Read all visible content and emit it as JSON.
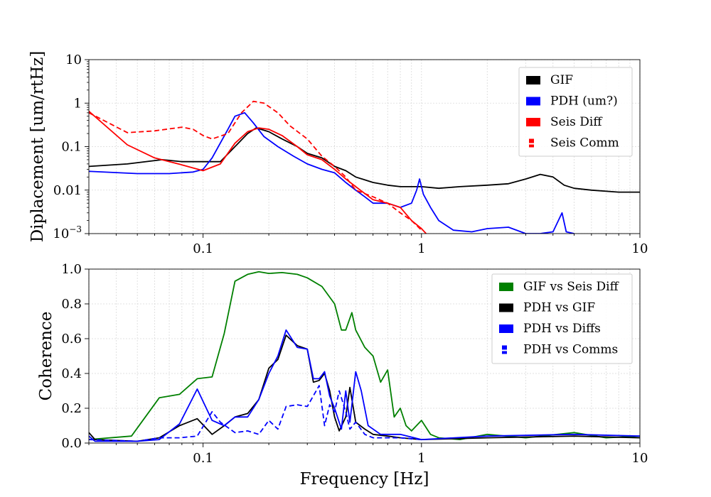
{
  "chart_data": [
    {
      "type": "line",
      "xscale": "log",
      "yscale": "log",
      "xlim": [
        0.03,
        10
      ],
      "ylim": [
        0.001,
        10
      ],
      "ylabel": "Diplacement [um/rtHz]",
      "xlabel": "",
      "xticks": [
        "0.1",
        "1",
        "10"
      ],
      "xtick_values": [
        0.1,
        1,
        10
      ],
      "yticks": [
        "10",
        "1",
        "0.1",
        "0.01",
        "10^-3"
      ],
      "ytick_values": [
        10,
        1,
        0.1,
        0.01,
        0.001
      ],
      "grid": true,
      "legend_position": "top-right",
      "series": [
        {
          "name": "GIF",
          "color": "#000000",
          "style": "solid",
          "points": [
            [
              0.03,
              0.035
            ],
            [
              0.045,
              0.04
            ],
            [
              0.065,
              0.05
            ],
            [
              0.08,
              0.045
            ],
            [
              0.1,
              0.045
            ],
            [
              0.12,
              0.045
            ],
            [
              0.14,
              0.1
            ],
            [
              0.16,
              0.2
            ],
            [
              0.175,
              0.27
            ],
            [
              0.2,
              0.22
            ],
            [
              0.23,
              0.15
            ],
            [
              0.27,
              0.1
            ],
            [
              0.3,
              0.07
            ],
            [
              0.35,
              0.055
            ],
            [
              0.4,
              0.035
            ],
            [
              0.45,
              0.028
            ],
            [
              0.5,
              0.02
            ],
            [
              0.6,
              0.015
            ],
            [
              0.7,
              0.013
            ],
            [
              0.8,
              0.012
            ],
            [
              1.0,
              0.012
            ],
            [
              1.2,
              0.011
            ],
            [
              1.5,
              0.012
            ],
            [
              2.0,
              0.013
            ],
            [
              2.5,
              0.014
            ],
            [
              3.0,
              0.018
            ],
            [
              3.5,
              0.023
            ],
            [
              4.0,
              0.02
            ],
            [
              4.5,
              0.013
            ],
            [
              5.0,
              0.011
            ],
            [
              6.0,
              0.01
            ],
            [
              8.0,
              0.009
            ],
            [
              10,
              0.009
            ]
          ]
        },
        {
          "name": "PDH (um?)",
          "color": "#0000ff",
          "style": "solid",
          "points": [
            [
              0.03,
              0.027
            ],
            [
              0.05,
              0.024
            ],
            [
              0.07,
              0.024
            ],
            [
              0.09,
              0.026
            ],
            [
              0.1,
              0.03
            ],
            [
              0.11,
              0.055
            ],
            [
              0.13,
              0.25
            ],
            [
              0.14,
              0.5
            ],
            [
              0.155,
              0.6
            ],
            [
              0.17,
              0.35
            ],
            [
              0.19,
              0.17
            ],
            [
              0.22,
              0.1
            ],
            [
              0.26,
              0.06
            ],
            [
              0.3,
              0.04
            ],
            [
              0.35,
              0.03
            ],
            [
              0.4,
              0.025
            ],
            [
              0.45,
              0.015
            ],
            [
              0.5,
              0.01
            ],
            [
              0.55,
              0.007
            ],
            [
              0.6,
              0.005
            ],
            [
              0.7,
              0.005
            ],
            [
              0.8,
              0.004
            ],
            [
              0.9,
              0.005
            ],
            [
              0.95,
              0.01
            ],
            [
              0.98,
              0.018
            ],
            [
              1.02,
              0.008
            ],
            [
              1.1,
              0.004
            ],
            [
              1.2,
              0.002
            ],
            [
              1.4,
              0.0012
            ],
            [
              1.7,
              0.0011
            ],
            [
              2.0,
              0.0013
            ],
            [
              2.5,
              0.0014
            ],
            [
              3.0,
              0.001
            ],
            [
              3.5,
              0.001
            ],
            [
              4.0,
              0.0011
            ],
            [
              4.4,
              0.003
            ],
            [
              4.6,
              0.0011
            ],
            [
              5.0,
              0.001
            ]
          ]
        },
        {
          "name": "Seis Diff",
          "color": "#ff0000",
          "style": "solid",
          "points": [
            [
              0.03,
              0.65
            ],
            [
              0.045,
              0.11
            ],
            [
              0.06,
              0.055
            ],
            [
              0.08,
              0.038
            ],
            [
              0.1,
              0.028
            ],
            [
              0.12,
              0.04
            ],
            [
              0.14,
              0.12
            ],
            [
              0.16,
              0.22
            ],
            [
              0.18,
              0.27
            ],
            [
              0.2,
              0.25
            ],
            [
              0.23,
              0.18
            ],
            [
              0.27,
              0.1
            ],
            [
              0.3,
              0.065
            ],
            [
              0.35,
              0.05
            ],
            [
              0.4,
              0.03
            ],
            [
              0.45,
              0.018
            ],
            [
              0.5,
              0.012
            ],
            [
              0.6,
              0.006
            ],
            [
              0.7,
              0.005
            ],
            [
              0.8,
              0.004
            ],
            [
              0.9,
              0.002
            ],
            [
              1.0,
              0.0013
            ],
            [
              1.05,
              0.001
            ]
          ]
        },
        {
          "name": "Seis Comm",
          "color": "#ff0000",
          "style": "dashed",
          "points": [
            [
              0.03,
              0.6
            ],
            [
              0.045,
              0.21
            ],
            [
              0.06,
              0.23
            ],
            [
              0.08,
              0.28
            ],
            [
              0.09,
              0.25
            ],
            [
              0.1,
              0.18
            ],
            [
              0.11,
              0.15
            ],
            [
              0.13,
              0.2
            ],
            [
              0.15,
              0.6
            ],
            [
              0.17,
              1.1
            ],
            [
              0.19,
              1.0
            ],
            [
              0.22,
              0.6
            ],
            [
              0.25,
              0.3
            ],
            [
              0.3,
              0.15
            ],
            [
              0.35,
              0.06
            ],
            [
              0.4,
              0.035
            ],
            [
              0.45,
              0.02
            ],
            [
              0.5,
              0.01
            ],
            [
              0.6,
              0.007
            ],
            [
              0.7,
              0.005
            ],
            [
              0.8,
              0.003
            ],
            [
              0.9,
              0.002
            ],
            [
              1.0,
              0.0012
            ]
          ]
        }
      ]
    },
    {
      "type": "line",
      "xscale": "log",
      "yscale": "linear",
      "xlim": [
        0.03,
        10
      ],
      "ylim": [
        0,
        1
      ],
      "ylabel": "Coherence",
      "xlabel": "Frequency [Hz]",
      "xticks": [
        "0.1",
        "1",
        "10"
      ],
      "xtick_values": [
        0.1,
        1,
        10
      ],
      "yticks": [
        "1.0",
        "0.8",
        "0.6",
        "0.4",
        "0.2",
        "0.0"
      ],
      "ytick_values": [
        1.0,
        0.8,
        0.6,
        0.4,
        0.2,
        0.0
      ],
      "grid": true,
      "legend_position": "top-right",
      "series": [
        {
          "name": "GIF vs Seis Diff",
          "color": "#008000",
          "style": "solid",
          "points": [
            [
              0.03,
              0.02
            ],
            [
              0.047,
              0.04
            ],
            [
              0.063,
              0.26
            ],
            [
              0.078,
              0.28
            ],
            [
              0.094,
              0.37
            ],
            [
              0.11,
              0.38
            ],
            [
              0.125,
              0.63
            ],
            [
              0.14,
              0.93
            ],
            [
              0.16,
              0.97
            ],
            [
              0.18,
              0.985
            ],
            [
              0.2,
              0.975
            ],
            [
              0.23,
              0.98
            ],
            [
              0.27,
              0.97
            ],
            [
              0.3,
              0.95
            ],
            [
              0.35,
              0.9
            ],
            [
              0.4,
              0.8
            ],
            [
              0.43,
              0.65
            ],
            [
              0.45,
              0.65
            ],
            [
              0.48,
              0.75
            ],
            [
              0.5,
              0.65
            ],
            [
              0.55,
              0.55
            ],
            [
              0.6,
              0.5
            ],
            [
              0.65,
              0.35
            ],
            [
              0.7,
              0.42
            ],
            [
              0.75,
              0.15
            ],
            [
              0.8,
              0.2
            ],
            [
              0.85,
              0.1
            ],
            [
              0.9,
              0.07
            ],
            [
              1.0,
              0.13
            ],
            [
              1.1,
              0.05
            ],
            [
              1.2,
              0.03
            ],
            [
              1.5,
              0.02
            ],
            [
              2.0,
              0.05
            ],
            [
              3.0,
              0.03
            ],
            [
              5.0,
              0.06
            ],
            [
              7.0,
              0.03
            ],
            [
              10,
              0.04
            ]
          ]
        },
        {
          "name": "PDH vs GIF",
          "color": "#000000",
          "style": "solid",
          "points": [
            [
              0.03,
              0.06
            ],
            [
              0.032,
              0.02
            ],
            [
              0.05,
              0.01
            ],
            [
              0.063,
              0.03
            ],
            [
              0.078,
              0.1
            ],
            [
              0.094,
              0.14
            ],
            [
              0.11,
              0.05
            ],
            [
              0.125,
              0.1
            ],
            [
              0.14,
              0.15
            ],
            [
              0.16,
              0.17
            ],
            [
              0.18,
              0.25
            ],
            [
              0.2,
              0.43
            ],
            [
              0.22,
              0.48
            ],
            [
              0.24,
              0.62
            ],
            [
              0.27,
              0.56
            ],
            [
              0.3,
              0.54
            ],
            [
              0.32,
              0.35
            ],
            [
              0.34,
              0.36
            ],
            [
              0.36,
              0.4
            ],
            [
              0.38,
              0.3
            ],
            [
              0.4,
              0.15
            ],
            [
              0.42,
              0.07
            ],
            [
              0.45,
              0.15
            ],
            [
              0.47,
              0.32
            ],
            [
              0.5,
              0.12
            ],
            [
              0.55,
              0.08
            ],
            [
              0.6,
              0.05
            ],
            [
              0.7,
              0.04
            ],
            [
              0.8,
              0.03
            ],
            [
              1.0,
              0.02
            ],
            [
              2.0,
              0.03
            ],
            [
              5.0,
              0.04
            ],
            [
              10,
              0.03
            ]
          ]
        },
        {
          "name": "PDH vs Diffs",
          "color": "#0000ff",
          "style": "solid",
          "points": [
            [
              0.03,
              0.04
            ],
            [
              0.032,
              0.01
            ],
            [
              0.05,
              0.01
            ],
            [
              0.063,
              0.02
            ],
            [
              0.078,
              0.11
            ],
            [
              0.094,
              0.31
            ],
            [
              0.11,
              0.13
            ],
            [
              0.125,
              0.1
            ],
            [
              0.14,
              0.15
            ],
            [
              0.16,
              0.15
            ],
            [
              0.18,
              0.25
            ],
            [
              0.2,
              0.4
            ],
            [
              0.22,
              0.5
            ],
            [
              0.24,
              0.65
            ],
            [
              0.27,
              0.55
            ],
            [
              0.3,
              0.54
            ],
            [
              0.32,
              0.37
            ],
            [
              0.34,
              0.37
            ],
            [
              0.36,
              0.41
            ],
            [
              0.38,
              0.27
            ],
            [
              0.4,
              0.2
            ],
            [
              0.43,
              0.08
            ],
            [
              0.45,
              0.3
            ],
            [
              0.47,
              0.12
            ],
            [
              0.5,
              0.41
            ],
            [
              0.53,
              0.3
            ],
            [
              0.57,
              0.1
            ],
            [
              0.65,
              0.05
            ],
            [
              0.8,
              0.05
            ],
            [
              1.0,
              0.02
            ],
            [
              2.0,
              0.04
            ],
            [
              5.0,
              0.05
            ],
            [
              10,
              0.04
            ]
          ]
        },
        {
          "name": "PDH vs Comms",
          "color": "#0000ff",
          "style": "dashed",
          "points": [
            [
              0.03,
              0.02
            ],
            [
              0.05,
              0.01
            ],
            [
              0.063,
              0.03
            ],
            [
              0.078,
              0.03
            ],
            [
              0.094,
              0.04
            ],
            [
              0.11,
              0.18
            ],
            [
              0.12,
              0.12
            ],
            [
              0.14,
              0.06
            ],
            [
              0.16,
              0.07
            ],
            [
              0.18,
              0.05
            ],
            [
              0.2,
              0.13
            ],
            [
              0.22,
              0.08
            ],
            [
              0.24,
              0.21
            ],
            [
              0.27,
              0.22
            ],
            [
              0.3,
              0.21
            ],
            [
              0.34,
              0.33
            ],
            [
              0.36,
              0.1
            ],
            [
              0.38,
              0.22
            ],
            [
              0.4,
              0.18
            ],
            [
              0.42,
              0.3
            ],
            [
              0.45,
              0.18
            ],
            [
              0.47,
              0.08
            ],
            [
              0.5,
              0.12
            ],
            [
              0.55,
              0.05
            ],
            [
              0.6,
              0.03
            ],
            [
              0.8,
              0.03
            ],
            [
              1.0,
              0.02
            ]
          ]
        }
      ]
    }
  ]
}
